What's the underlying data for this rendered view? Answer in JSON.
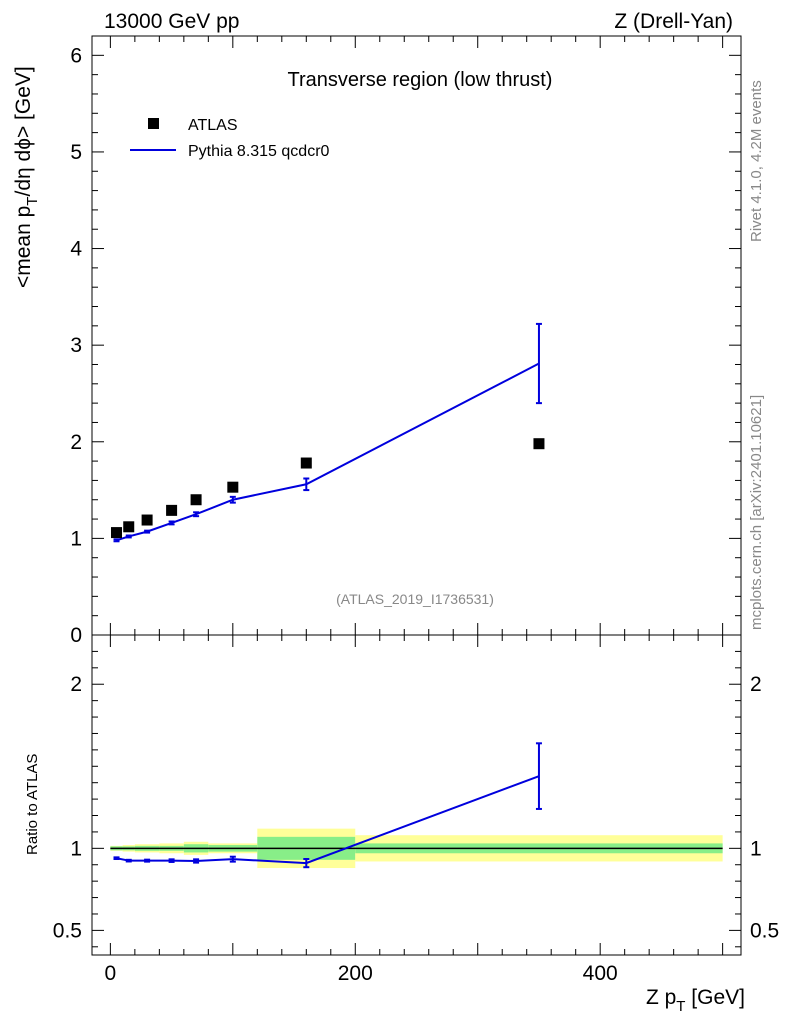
{
  "header": {
    "left": "13000 GeV pp",
    "right": "Z (Drell-Yan)"
  },
  "side": {
    "rivet": "Rivet 4.1.0,  4.2M events",
    "mcplots": "mcplots.cern.ch [arXiv:2401.10621]"
  },
  "chart_data": {
    "type": "line",
    "title": "Transverse region (low thrust)",
    "analysis_id": "(ATLAS_2019_I1736531)",
    "xlabel_main": "Z p",
    "xlabel_sub": "T",
    "xlabel_unit": " [GeV]",
    "ylabel_pre": "<mean p",
    "ylabel_sub": "T",
    "ylabel_post": "/dη dϕ> [GeV]",
    "ratio_ylabel": "Ratio to ATLAS",
    "xlim": [
      -15,
      515
    ],
    "ylim": [
      0,
      6.2
    ],
    "ratio_ylim": [
      0.35,
      2.3
    ],
    "x_ticks": [
      0,
      200,
      400
    ],
    "x_tick_labels": [
      "0",
      "200",
      "400"
    ],
    "y_ticks": [
      0,
      1,
      2,
      3,
      4,
      5,
      6
    ],
    "y_tick_labels": [
      "0",
      "1",
      "2",
      "3",
      "4",
      "5",
      "6"
    ],
    "ratio_ticks": [
      0.5,
      1,
      2
    ],
    "ratio_tick_labels": [
      "0.5",
      "1",
      "2"
    ],
    "legend": [
      {
        "name": "ATLAS",
        "marker": "square",
        "color": "#000000"
      },
      {
        "name": "Pythia 8.315 qcdcr0",
        "marker": "line",
        "color": "#0000dd"
      }
    ],
    "bins": [
      {
        "lo": 0,
        "hi": 10
      },
      {
        "lo": 10,
        "hi": 20
      },
      {
        "lo": 20,
        "hi": 40
      },
      {
        "lo": 40,
        "hi": 60
      },
      {
        "lo": 60,
        "hi": 80
      },
      {
        "lo": 80,
        "hi": 120
      },
      {
        "lo": 120,
        "hi": 200
      },
      {
        "lo": 200,
        "hi": 500
      }
    ],
    "series": [
      {
        "name": "ATLAS",
        "x": [
          5,
          15,
          30,
          50,
          70,
          100,
          160,
          350
        ],
        "y": [
          1.06,
          1.12,
          1.19,
          1.29,
          1.4,
          1.53,
          1.78,
          1.98
        ],
        "ratio_band_inner": [
          0.012,
          0.012,
          0.015,
          0.015,
          0.025,
          0.02,
          0.07,
          0.03
        ],
        "ratio_band_outer": [
          0.015,
          0.02,
          0.025,
          0.03,
          0.04,
          0.03,
          0.12,
          0.08
        ]
      },
      {
        "name": "Pythia 8.315 qcdcr0",
        "x": [
          5,
          15,
          30,
          50,
          70,
          100,
          160,
          350
        ],
        "y": [
          0.98,
          1.02,
          1.07,
          1.16,
          1.25,
          1.4,
          1.56,
          2.81
        ],
        "yerr": [
          0.01,
          0.01,
          0.01,
          0.015,
          0.02,
          0.03,
          0.06,
          0.41
        ],
        "ratio": [
          0.94,
          0.925,
          0.925,
          0.925,
          0.923,
          0.934,
          0.91,
          1.44
        ],
        "ratio_err": [
          0.005,
          0.005,
          0.006,
          0.008,
          0.01,
          0.015,
          0.025,
          0.2
        ]
      }
    ]
  }
}
